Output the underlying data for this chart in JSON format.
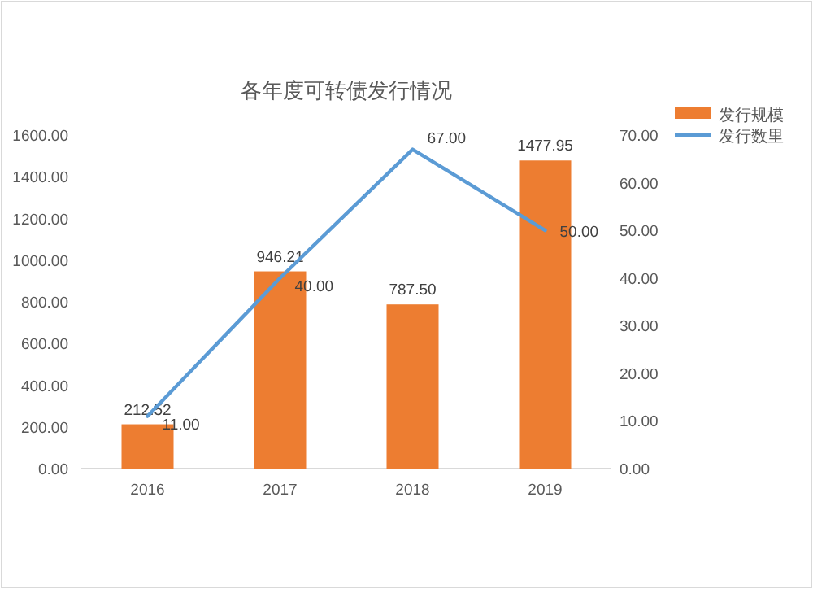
{
  "chart_data": {
    "type": "bar",
    "title": "各年度可转债发行情况",
    "categories": [
      "2016",
      "2017",
      "2018",
      "2019"
    ],
    "series": [
      {
        "name": "发行规模",
        "color": "#ed7d31",
        "values": [
          212.52,
          946.21,
          787.5,
          1477.95
        ],
        "value_labels": [
          "212.52",
          "946.21",
          "787.50",
          "1477.95"
        ]
      },
      {
        "name": "发行数里",
        "type": "line",
        "axis": "y2",
        "color": "#5b9bd5",
        "values": [
          11,
          40,
          67,
          50
        ],
        "value_labels": [
          "11.00",
          "40.00",
          "67.00",
          "50.00"
        ]
      }
    ],
    "ylim": [
      0,
      1600
    ],
    "yticks": [
      {
        "value": 0,
        "label": "0.00"
      },
      {
        "value": 200,
        "label": "200.00"
      },
      {
        "value": 400,
        "label": "400.00"
      },
      {
        "value": 600,
        "label": "600.00"
      },
      {
        "value": 800,
        "label": "800.00"
      },
      {
        "value": 1000,
        "label": "1000.00"
      },
      {
        "value": 1200,
        "label": "1200.00"
      },
      {
        "value": 1400,
        "label": "1400.00"
      },
      {
        "value": 1600,
        "label": "1600.00"
      }
    ],
    "y2lim": [
      0,
      70
    ],
    "y2ticks": [
      {
        "value": 0,
        "label": "0.00"
      },
      {
        "value": 10,
        "label": "10.00"
      },
      {
        "value": 20,
        "label": "20.00"
      },
      {
        "value": 30,
        "label": "30.00"
      },
      {
        "value": 40,
        "label": "40.00"
      },
      {
        "value": 50,
        "label": "50.00"
      },
      {
        "value": 60,
        "label": "60.00"
      },
      {
        "value": 70,
        "label": "70.00"
      }
    ],
    "legend": "top right",
    "marker": "none"
  }
}
